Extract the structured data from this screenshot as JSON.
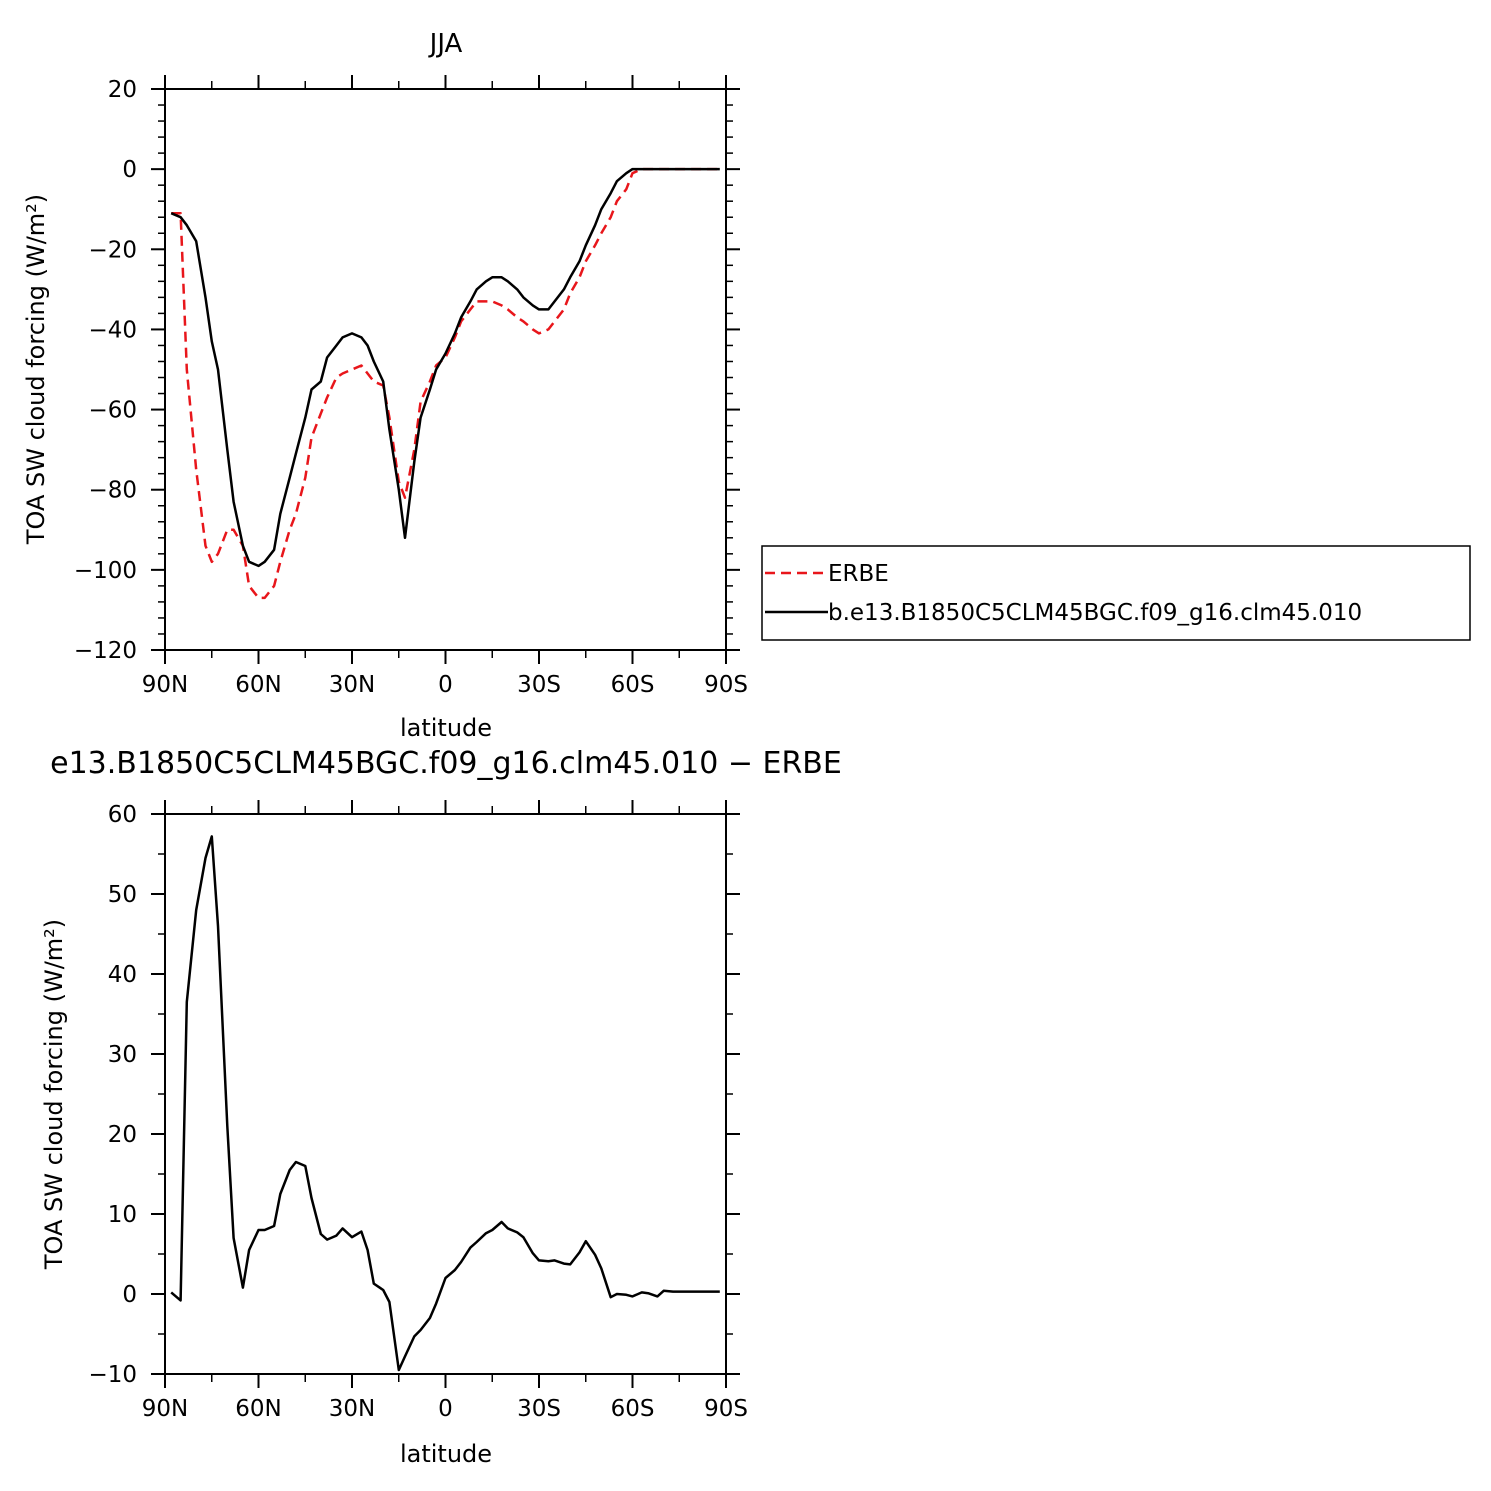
{
  "chart_data": [
    {
      "type": "line",
      "title": "JJA",
      "xlabel": "latitude",
      "ylabel": "TOA SW cloud forcing (W/m²)",
      "ylim": [
        -120,
        20
      ],
      "xlim": [
        90,
        -90
      ],
      "xticks": [
        90,
        60,
        30,
        0,
        -30,
        -60,
        -90
      ],
      "xtick_labels": [
        "90N",
        "60N",
        "30N",
        "0",
        "30S",
        "60S",
        "90S"
      ],
      "yticks": [
        20,
        0,
        -20,
        -40,
        -60,
        -80,
        -100,
        -120
      ],
      "ytick_labels": [
        "20",
        "0",
        "−20",
        "−40",
        "−60",
        "−80",
        "−100",
        "−120"
      ],
      "legend_position": "right",
      "series": [
        {
          "name": "ERBE",
          "color": "#e8161b",
          "dash": "dashed",
          "x": [
            88,
            85,
            83,
            80,
            77,
            75,
            73,
            70,
            68,
            65,
            63,
            60,
            58,
            55,
            53,
            50,
            48,
            45,
            43,
            40,
            38,
            35,
            33,
            30,
            27,
            25,
            23,
            20,
            18,
            15,
            13,
            10,
            8,
            5,
            3,
            0,
            -3,
            -5,
            -8,
            -10,
            -13,
            -15,
            -18,
            -20,
            -23,
            -25,
            -28,
            -30,
            -33,
            -35,
            -38,
            -40,
            -43,
            -45,
            -48,
            -50,
            -53,
            -55,
            -58,
            -60,
            -63,
            -65,
            -68,
            -70,
            -73,
            -75,
            -78,
            -80,
            -83,
            -85,
            -88
          ],
          "y": [
            -11,
            -11,
            -50,
            -75,
            -94,
            -98,
            -96,
            -90,
            -90,
            -94,
            -104,
            -107,
            -107,
            -104,
            -98,
            -90,
            -86,
            -77,
            -67,
            -61,
            -57,
            -52,
            -51,
            -50,
            -49,
            -51,
            -53,
            -54,
            -62,
            -78,
            -82,
            -70,
            -58,
            -53,
            -49,
            -47,
            -42,
            -38,
            -35,
            -33,
            -33,
            -33,
            -34,
            -35,
            -37,
            -38,
            -40,
            -41,
            -40,
            -38,
            -35,
            -31,
            -27,
            -23,
            -19,
            -16,
            -12,
            -8,
            -5,
            -1,
            0,
            0,
            0,
            0,
            0,
            0,
            0,
            0,
            0,
            0,
            0
          ]
        },
        {
          "name": "b.e13.B1850C5CLM45BGC.f09_g16.clm45.010",
          "color": "#000000",
          "dash": "solid",
          "x": [
            88,
            85,
            83,
            80,
            77,
            75,
            73,
            70,
            68,
            65,
            63,
            60,
            58,
            55,
            53,
            50,
            48,
            45,
            43,
            40,
            38,
            35,
            33,
            30,
            27,
            25,
            23,
            20,
            18,
            15,
            13,
            10,
            8,
            5,
            3,
            0,
            -3,
            -5,
            -8,
            -10,
            -13,
            -15,
            -18,
            -20,
            -23,
            -25,
            -28,
            -30,
            -33,
            -35,
            -38,
            -40,
            -43,
            -45,
            -48,
            -50,
            -53,
            -55,
            -58,
            -60,
            -63,
            -65,
            -68,
            -70,
            -73,
            -75,
            -78,
            -80,
            -83,
            -85,
            -88
          ],
          "y": [
            -11,
            -12,
            -14,
            -18,
            -32,
            -43,
            -50,
            -70,
            -83,
            -94,
            -98,
            -99,
            -98,
            -95,
            -86,
            -77,
            -71,
            -62,
            -55,
            -53,
            -47,
            -44,
            -42,
            -41,
            -42,
            -44,
            -48,
            -53,
            -65,
            -80,
            -92,
            -73,
            -62,
            -55,
            -50,
            -46,
            -41,
            -37,
            -33,
            -30,
            -28,
            -27,
            -27,
            -28,
            -30,
            -32,
            -34,
            -35,
            -35,
            -33,
            -30,
            -27,
            -23,
            -19,
            -14,
            -10,
            -6,
            -3,
            -1,
            0,
            0,
            0,
            0,
            0,
            0,
            0,
            0,
            0,
            0,
            0,
            0
          ]
        }
      ]
    },
    {
      "type": "line",
      "title": "e13.B1850C5CLM45BGC.f09_g16.clm45.010 − ERBE",
      "xlabel": "latitude",
      "ylabel": "TOA SW cloud forcing (W/m²)",
      "ylim": [
        -10,
        60
      ],
      "xlim": [
        90,
        -90
      ],
      "xticks": [
        90,
        60,
        30,
        0,
        -30,
        -60,
        -90
      ],
      "xtick_labels": [
        "90N",
        "60N",
        "30N",
        "0",
        "30S",
        "60S",
        "90S"
      ],
      "yticks": [
        60,
        50,
        40,
        30,
        20,
        10,
        0,
        -10
      ],
      "ytick_labels": [
        "60",
        "50",
        "40",
        "30",
        "20",
        "10",
        "0",
        "−10"
      ],
      "series": [
        {
          "color": "#000000",
          "dash": "solid",
          "x": [
            88,
            85,
            83,
            80,
            77,
            75,
            73,
            70,
            68,
            65,
            63,
            60,
            58,
            55,
            53,
            50,
            48,
            45,
            43,
            40,
            38,
            35,
            33,
            30,
            27,
            25,
            23,
            20,
            18,
            15,
            13,
            10,
            8,
            5,
            3,
            0,
            -3,
            -5,
            -8,
            -10,
            -13,
            -15,
            -18,
            -20,
            -23,
            -25,
            -28,
            -30,
            -33,
            -35,
            -38,
            -40,
            -43,
            -45,
            -48,
            -50,
            -53,
            -55,
            -58,
            -60,
            -63,
            -65,
            -68,
            -70,
            -73,
            -75,
            -78,
            -80,
            -83,
            -85,
            -88
          ],
          "y": [
            0.2,
            -0.8,
            36.5,
            48,
            54.5,
            57.2,
            46,
            21,
            7,
            0.8,
            5.5,
            8,
            8,
            8.5,
            12.5,
            15.5,
            16.5,
            16,
            12,
            7.5,
            6.8,
            7.3,
            8.2,
            7.1,
            7.8,
            5.5,
            1.3,
            0.5,
            -1,
            -9.5,
            -7.8,
            -5.3,
            -4.5,
            -3,
            -1.2,
            2,
            3,
            4,
            5.8,
            6.5,
            7.6,
            8,
            9,
            8.2,
            7.7,
            7.1,
            5.1,
            4.2,
            4.1,
            4.2,
            3.8,
            3.7,
            5.2,
            6.6,
            4.9,
            3.2,
            -0.4,
            0,
            -0.1,
            -0.3,
            0.2,
            0.1,
            -0.3,
            0.4,
            0.3,
            0.3,
            0.3,
            0.3,
            0.3,
            0.3,
            0.3
          ]
        }
      ]
    }
  ]
}
